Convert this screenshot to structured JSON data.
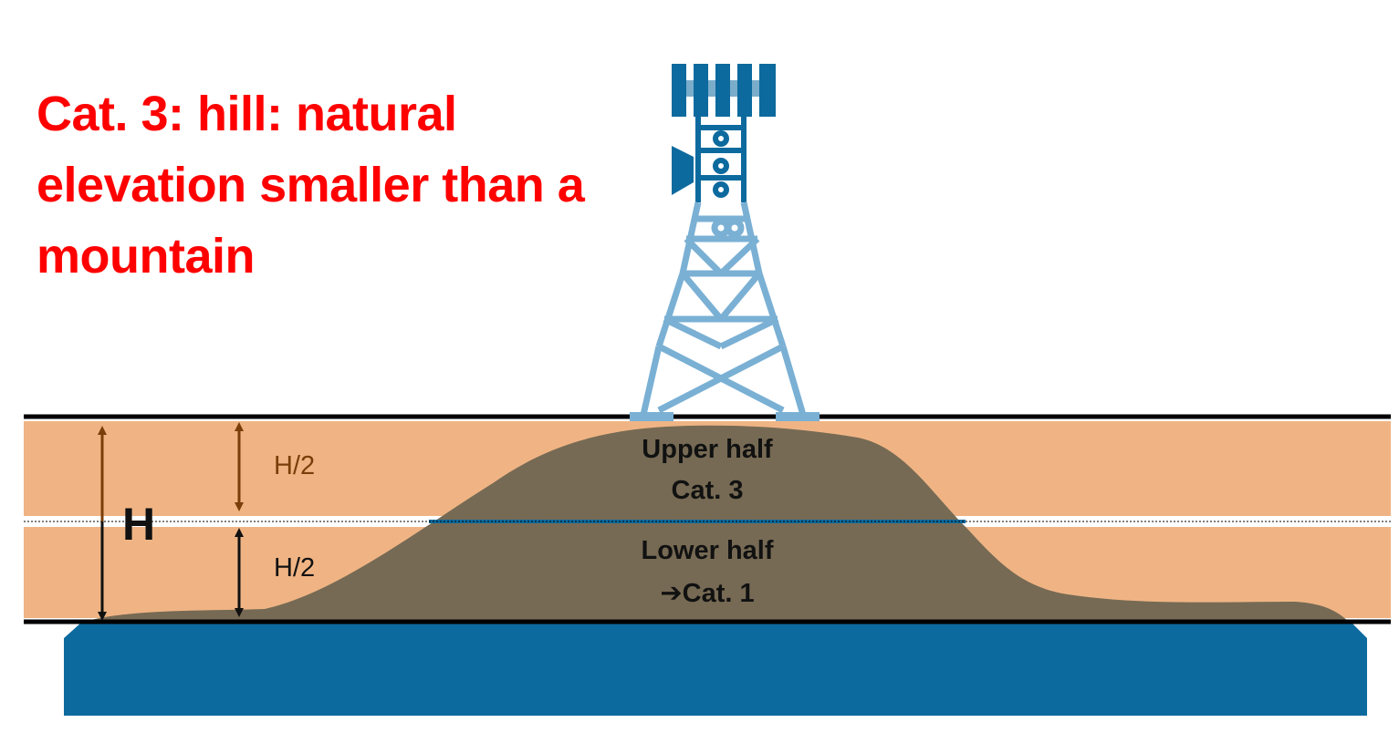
{
  "title_lines": [
    "Cat. 3: hill: natural",
    "elevation smaller than a",
    "mountain"
  ],
  "labels": {
    "total_height": "H",
    "upper_half_dim": "H/2",
    "lower_half_dim": "H/2",
    "upper_half_line1": "Upper half",
    "upper_half_line2": "Cat. 3",
    "lower_half_line1": "Lower half",
    "lower_half_line2": "Cat. 1",
    "lower_half_arrow": "➔"
  },
  "colors": {
    "title": "#ff0000",
    "band_fill": "#f0b484",
    "hill_fill": "#766a54",
    "base_fill": "#0d6a9e",
    "tower_dark": "#0d6a9e",
    "tower_light": "#7ab0d4",
    "upper_dim_arrow": "#7a3e0a",
    "lower_dim_arrow": "#111111",
    "guide_line": "#000000"
  }
}
